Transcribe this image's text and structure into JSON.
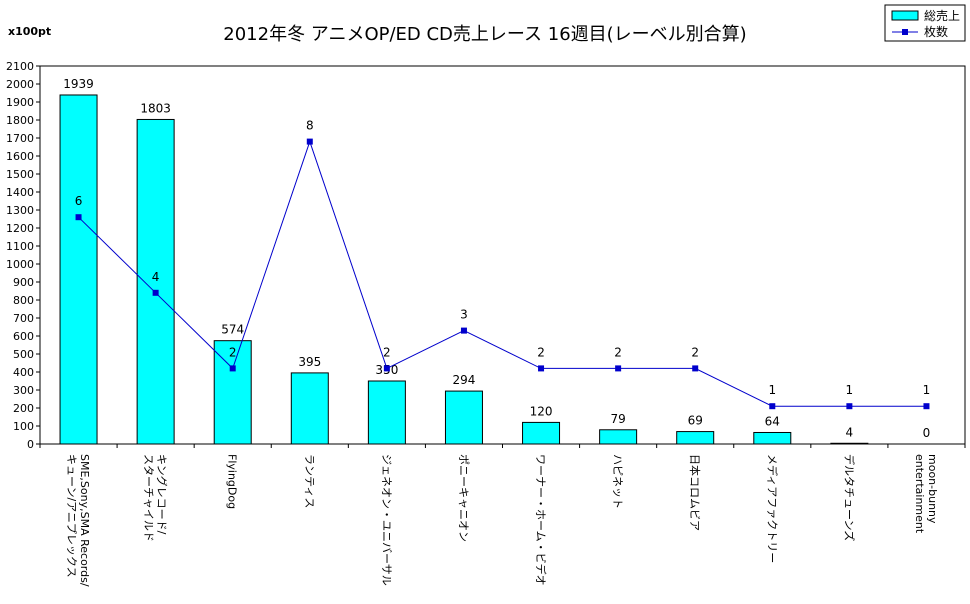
{
  "chart_data": {
    "type": "bar",
    "title": "2012年冬 アニメOP/ED CD売上レース 16週目(レーベル別合算)",
    "unit_label": "x100pt",
    "categories": [
      [
        "SME,Sony,SMA Records/",
        "キューン/アニプレックス"
      ],
      [
        "キングレコード/",
        "スターチャイルド"
      ],
      [
        "FlyingDog"
      ],
      [
        "ランティス"
      ],
      [
        "ジェネオン・ユニバーサル"
      ],
      [
        "ポニーキャニオン"
      ],
      [
        "ワーナー・ホーム・ビデオ"
      ],
      [
        "ハピネット"
      ],
      [
        "日本コロムビア"
      ],
      [
        "メディアファクトリー"
      ],
      [
        "デルタチューンズ"
      ],
      [
        "moon-bunny",
        "entertainment"
      ]
    ],
    "ylim": [
      0,
      2100
    ],
    "y_tick_step": 100,
    "y2lim": [
      0,
      10
    ],
    "legend_position": "top-right",
    "series": [
      {
        "name": "総売上",
        "type": "bar",
        "color": "#00ffff",
        "values": [
          1939,
          1803,
          574,
          395,
          350,
          294,
          120,
          79,
          69,
          64,
          4,
          0
        ]
      },
      {
        "name": "枚数",
        "type": "line",
        "axis": "secondary",
        "color": "#0000cc",
        "values": [
          6,
          4,
          2,
          8,
          2,
          3,
          2,
          2,
          2,
          1,
          1,
          1
        ]
      }
    ]
  }
}
